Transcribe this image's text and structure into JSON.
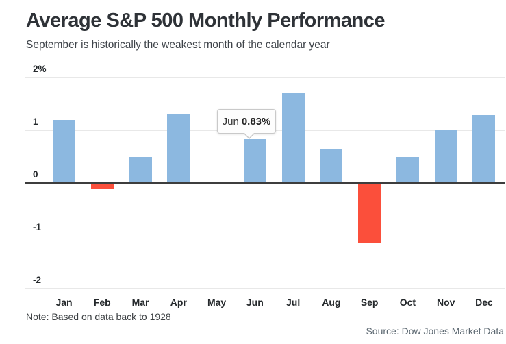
{
  "header": {
    "title": "Average S&P 500 Monthly Performance",
    "subtitle": "September is historically the weakest month of the calendar year"
  },
  "chart_data": {
    "type": "bar",
    "title": "Average S&P 500 Monthly Performance",
    "subtitle": "September is historically the weakest month of the calendar year",
    "categories": [
      "Jan",
      "Feb",
      "Mar",
      "Apr",
      "May",
      "Jun",
      "Jul",
      "Aug",
      "Sep",
      "Oct",
      "Nov",
      "Dec"
    ],
    "values": [
      1.2,
      -0.1,
      0.5,
      1.3,
      0.02,
      0.83,
      1.7,
      0.65,
      -1.13,
      0.5,
      1.0,
      1.28
    ],
    "unit": "%",
    "xlabel": "",
    "ylabel": "",
    "ylim": [
      -2,
      2
    ],
    "yticks": [
      {
        "label": "2%",
        "value": 2
      },
      {
        "label": "1",
        "value": 1
      },
      {
        "label": "0",
        "value": 0
      },
      {
        "label": "-1",
        "value": -1
      },
      {
        "label": "-2",
        "value": -2
      }
    ],
    "grid": true,
    "legend": "none",
    "positive_color": "#8cb8e0",
    "negative_color": "#fb4f3b",
    "tooltip": {
      "label": "Jun",
      "value": "0.83%",
      "target_month": "Jun"
    }
  },
  "footer": {
    "note": "Note: Based on data back to 1928",
    "source": "Source: Dow Jones Market Data"
  }
}
